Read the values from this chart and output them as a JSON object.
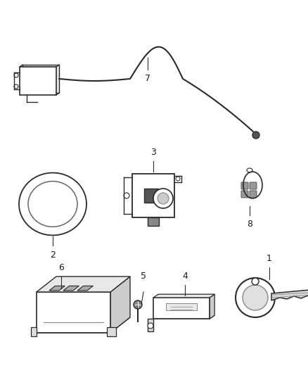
{
  "background_color": "#ffffff",
  "fig_width": 4.38,
  "fig_height": 5.33,
  "dpi": 100,
  "text_color": "#1a1a1a",
  "line_color": "#2a2a2a",
  "fill_color": "#f0f0f0",
  "dark_fill": "#888888"
}
